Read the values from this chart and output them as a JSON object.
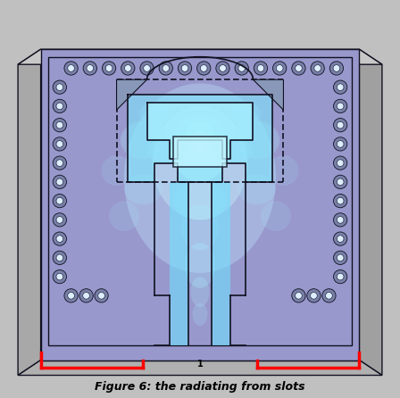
{
  "title": "Figure 6: the radiating from slots",
  "title_fontsize": 9,
  "bg_color": "#c0c0c0",
  "board_color_light": "#b8c0e0",
  "board_color": "#9090c8",
  "glow_cyan": "#80f0ff",
  "glow_white": "#e0faff",
  "outline_color": "#111122",
  "red_color": "#ff0000",
  "fig_width": 4.48,
  "fig_height": 4.46,
  "dpi": 100
}
